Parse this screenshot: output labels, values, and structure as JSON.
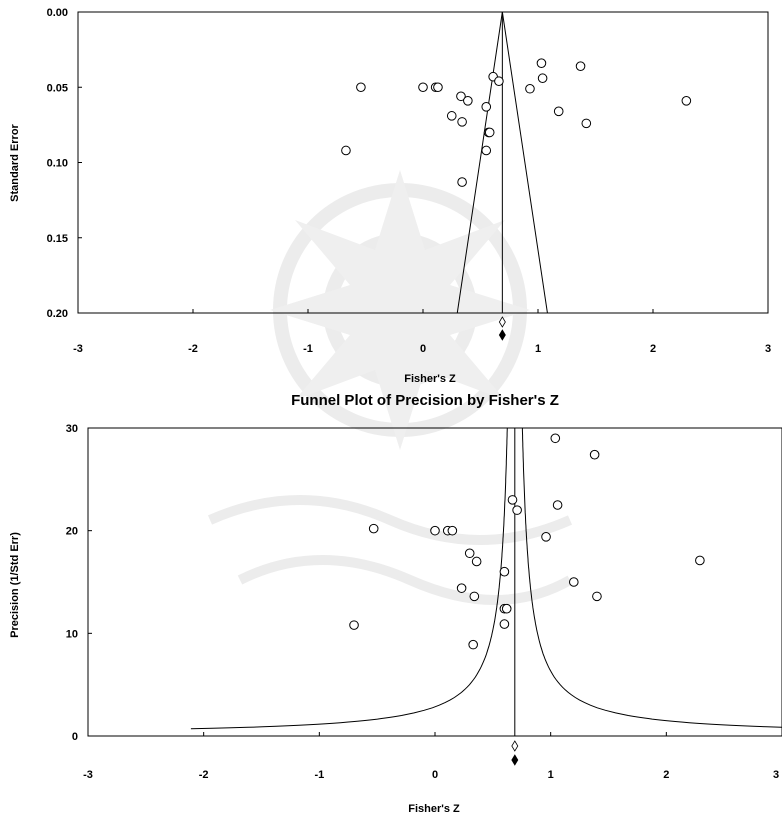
{
  "chart_data": [
    {
      "type": "scatter",
      "title": "",
      "xlabel": "Fisher's Z",
      "ylabel": "Standard Error",
      "xlim": [
        -3,
        3
      ],
      "ylim": [
        0.0,
        0.2
      ],
      "y_inverted": true,
      "x_ticks": [
        "-3",
        "-2",
        "-1",
        "0",
        "1",
        "2",
        "3"
      ],
      "y_ticks": [
        "0.00",
        "0.05",
        "0.10",
        "0.15",
        "0.20"
      ],
      "grid": false,
      "legend": "none",
      "funnel": {
        "mean": 0.69,
        "shape": "triangle (95% limits)"
      },
      "summary_open_diamond": 0.69,
      "summary_filled_diamond": 0.69,
      "points": [
        {
          "x": -0.54,
          "y": 0.05
        },
        {
          "x": -0.67,
          "y": 0.092
        },
        {
          "x": 0.0,
          "y": 0.05
        },
        {
          "x": 0.11,
          "y": 0.05
        },
        {
          "x": 0.13,
          "y": 0.05
        },
        {
          "x": 0.33,
          "y": 0.056
        },
        {
          "x": 0.39,
          "y": 0.059
        },
        {
          "x": 0.25,
          "y": 0.069
        },
        {
          "x": 0.34,
          "y": 0.073
        },
        {
          "x": 0.34,
          "y": 0.113
        },
        {
          "x": 0.61,
          "y": 0.043
        },
        {
          "x": 0.66,
          "y": 0.046
        },
        {
          "x": 0.55,
          "y": 0.063
        },
        {
          "x": 0.57,
          "y": 0.08
        },
        {
          "x": 0.58,
          "y": 0.08
        },
        {
          "x": 0.55,
          "y": 0.092
        },
        {
          "x": 0.93,
          "y": 0.051
        },
        {
          "x": 1.03,
          "y": 0.034
        },
        {
          "x": 1.04,
          "y": 0.044
        },
        {
          "x": 1.18,
          "y": 0.066
        },
        {
          "x": 1.37,
          "y": 0.036
        },
        {
          "x": 1.42,
          "y": 0.074
        },
        {
          "x": 2.29,
          "y": 0.059
        }
      ]
    },
    {
      "type": "scatter",
      "title": "Funnel Plot of Precision by Fisher's Z",
      "xlabel": "Fisher's Z",
      "ylabel": "Precision (1/Std Err)",
      "xlim": [
        -3,
        3
      ],
      "ylim": [
        0,
        30
      ],
      "x_ticks": [
        "-3",
        "-2",
        "-1",
        "0",
        "1",
        "2",
        "3"
      ],
      "y_ticks": [
        "0",
        "10",
        "20",
        "30"
      ],
      "grid": false,
      "legend": "none",
      "funnel": {
        "mean": 0.69,
        "shape": "precision funnel (95% limits)"
      },
      "summary_open_diamond": 0.69,
      "summary_filled_diamond": 0.69,
      "points": [
        {
          "x": -0.7,
          "y": 10.8
        },
        {
          "x": -0.53,
          "y": 20.2
        },
        {
          "x": 0.0,
          "y": 20.0
        },
        {
          "x": 0.11,
          "y": 20.0
        },
        {
          "x": 0.15,
          "y": 20.0
        },
        {
          "x": 0.3,
          "y": 17.8
        },
        {
          "x": 0.36,
          "y": 17.0
        },
        {
          "x": 0.23,
          "y": 14.4
        },
        {
          "x": 0.34,
          "y": 13.6
        },
        {
          "x": 0.33,
          "y": 8.9
        },
        {
          "x": 0.6,
          "y": 16.0
        },
        {
          "x": 0.6,
          "y": 12.4
        },
        {
          "x": 0.62,
          "y": 12.4
        },
        {
          "x": 0.6,
          "y": 10.9
        },
        {
          "x": 0.67,
          "y": 23.0
        },
        {
          "x": 0.71,
          "y": 22.0
        },
        {
          "x": 1.04,
          "y": 29.0
        },
        {
          "x": 1.06,
          "y": 22.5
        },
        {
          "x": 0.96,
          "y": 19.4
        },
        {
          "x": 1.2,
          "y": 15.0
        },
        {
          "x": 1.38,
          "y": 27.4
        },
        {
          "x": 1.4,
          "y": 13.6
        },
        {
          "x": 2.29,
          "y": 17.1
        }
      ]
    }
  ]
}
